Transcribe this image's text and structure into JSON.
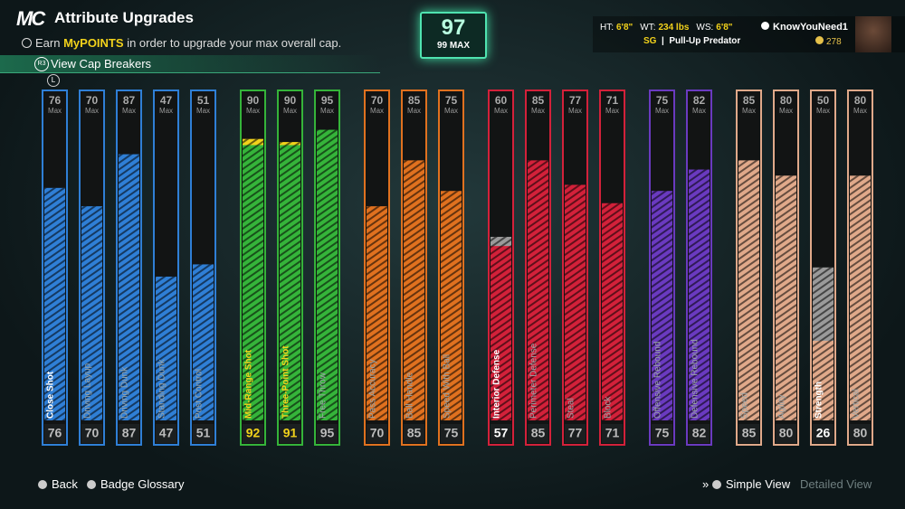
{
  "logo": "MC",
  "title": "Attribute Upgrades",
  "info": {
    "before": "Earn",
    "highlight": "MyPOINTS",
    "after": "in order to upgrade your max overall cap."
  },
  "cap_breakers": {
    "button": "R3",
    "label": "View Cap Breakers"
  },
  "tab_button": "L",
  "cap": {
    "value": 97,
    "max": 99,
    "max_label": "99 MAX"
  },
  "player": {
    "stats": [
      {
        "label": "HT:",
        "value": "6'8\""
      },
      {
        "label": "WT:",
        "value": "234 lbs"
      },
      {
        "label": "WS:",
        "value": "6'8\""
      }
    ],
    "position": "SG",
    "archetype": "Pull-Up Predator",
    "name": "KnowYouNeed1",
    "coins": 278
  },
  "max_label": "Max",
  "groups": [
    {
      "color": "#2f7fd6",
      "attributes": [
        {
          "name": "Close Shot",
          "max": 76,
          "value": 76,
          "label_color": "#ffffff"
        },
        {
          "name": "Driving Layup",
          "max": 70,
          "value": 70
        },
        {
          "name": "Driving Dunk",
          "max": 87,
          "value": 87
        },
        {
          "name": "Standing Dunk",
          "max": 47,
          "value": 47
        },
        {
          "name": "Post Control",
          "max": 51,
          "value": 51
        }
      ]
    },
    {
      "color": "#35b43a",
      "attributes": [
        {
          "name": "Mid-Range Shot",
          "max": 90,
          "value": 92,
          "label_color": "#f2d21b"
        },
        {
          "name": "Three-Point Shot",
          "max": 90,
          "value": 91,
          "label_color": "#f2d21b"
        },
        {
          "name": "Free Throw",
          "max": 95,
          "value": 95
        }
      ]
    },
    {
      "color": "#e0711f",
      "attributes": [
        {
          "name": "Pass Accuracy",
          "max": 70,
          "value": 70
        },
        {
          "name": "Ball Handle",
          "max": 85,
          "value": 85
        },
        {
          "name": "Speed With Ball",
          "max": 75,
          "value": 75
        }
      ]
    },
    {
      "color": "#d3213a",
      "attributes": [
        {
          "name": "Interior Defense",
          "max": 60,
          "value": 57,
          "label_color": "#ffffff"
        },
        {
          "name": "Perimeter Defense",
          "max": 85,
          "value": 85
        },
        {
          "name": "Steal",
          "max": 77,
          "value": 77
        },
        {
          "name": "Block",
          "max": 71,
          "value": 71
        }
      ]
    },
    {
      "color": "#6a3ac0",
      "attributes": [
        {
          "name": "Offensive Rebound",
          "max": 75,
          "value": 75
        },
        {
          "name": "Defensive Rebound",
          "max": 82,
          "value": 82
        }
      ]
    },
    {
      "color": "#e0a98a",
      "attributes": [
        {
          "name": "Speed",
          "max": 85,
          "value": 85
        },
        {
          "name": "Agility",
          "max": 80,
          "value": 80
        },
        {
          "name": "Strength",
          "max": 50,
          "value": 26,
          "label_color": "#ffffff"
        },
        {
          "name": "Vertical",
          "max": 80,
          "value": 80
        }
      ]
    }
  ],
  "footer": {
    "back": "Back",
    "glossary": "Badge Glossary",
    "simple": "Simple View",
    "detailed": "Detailed View"
  }
}
